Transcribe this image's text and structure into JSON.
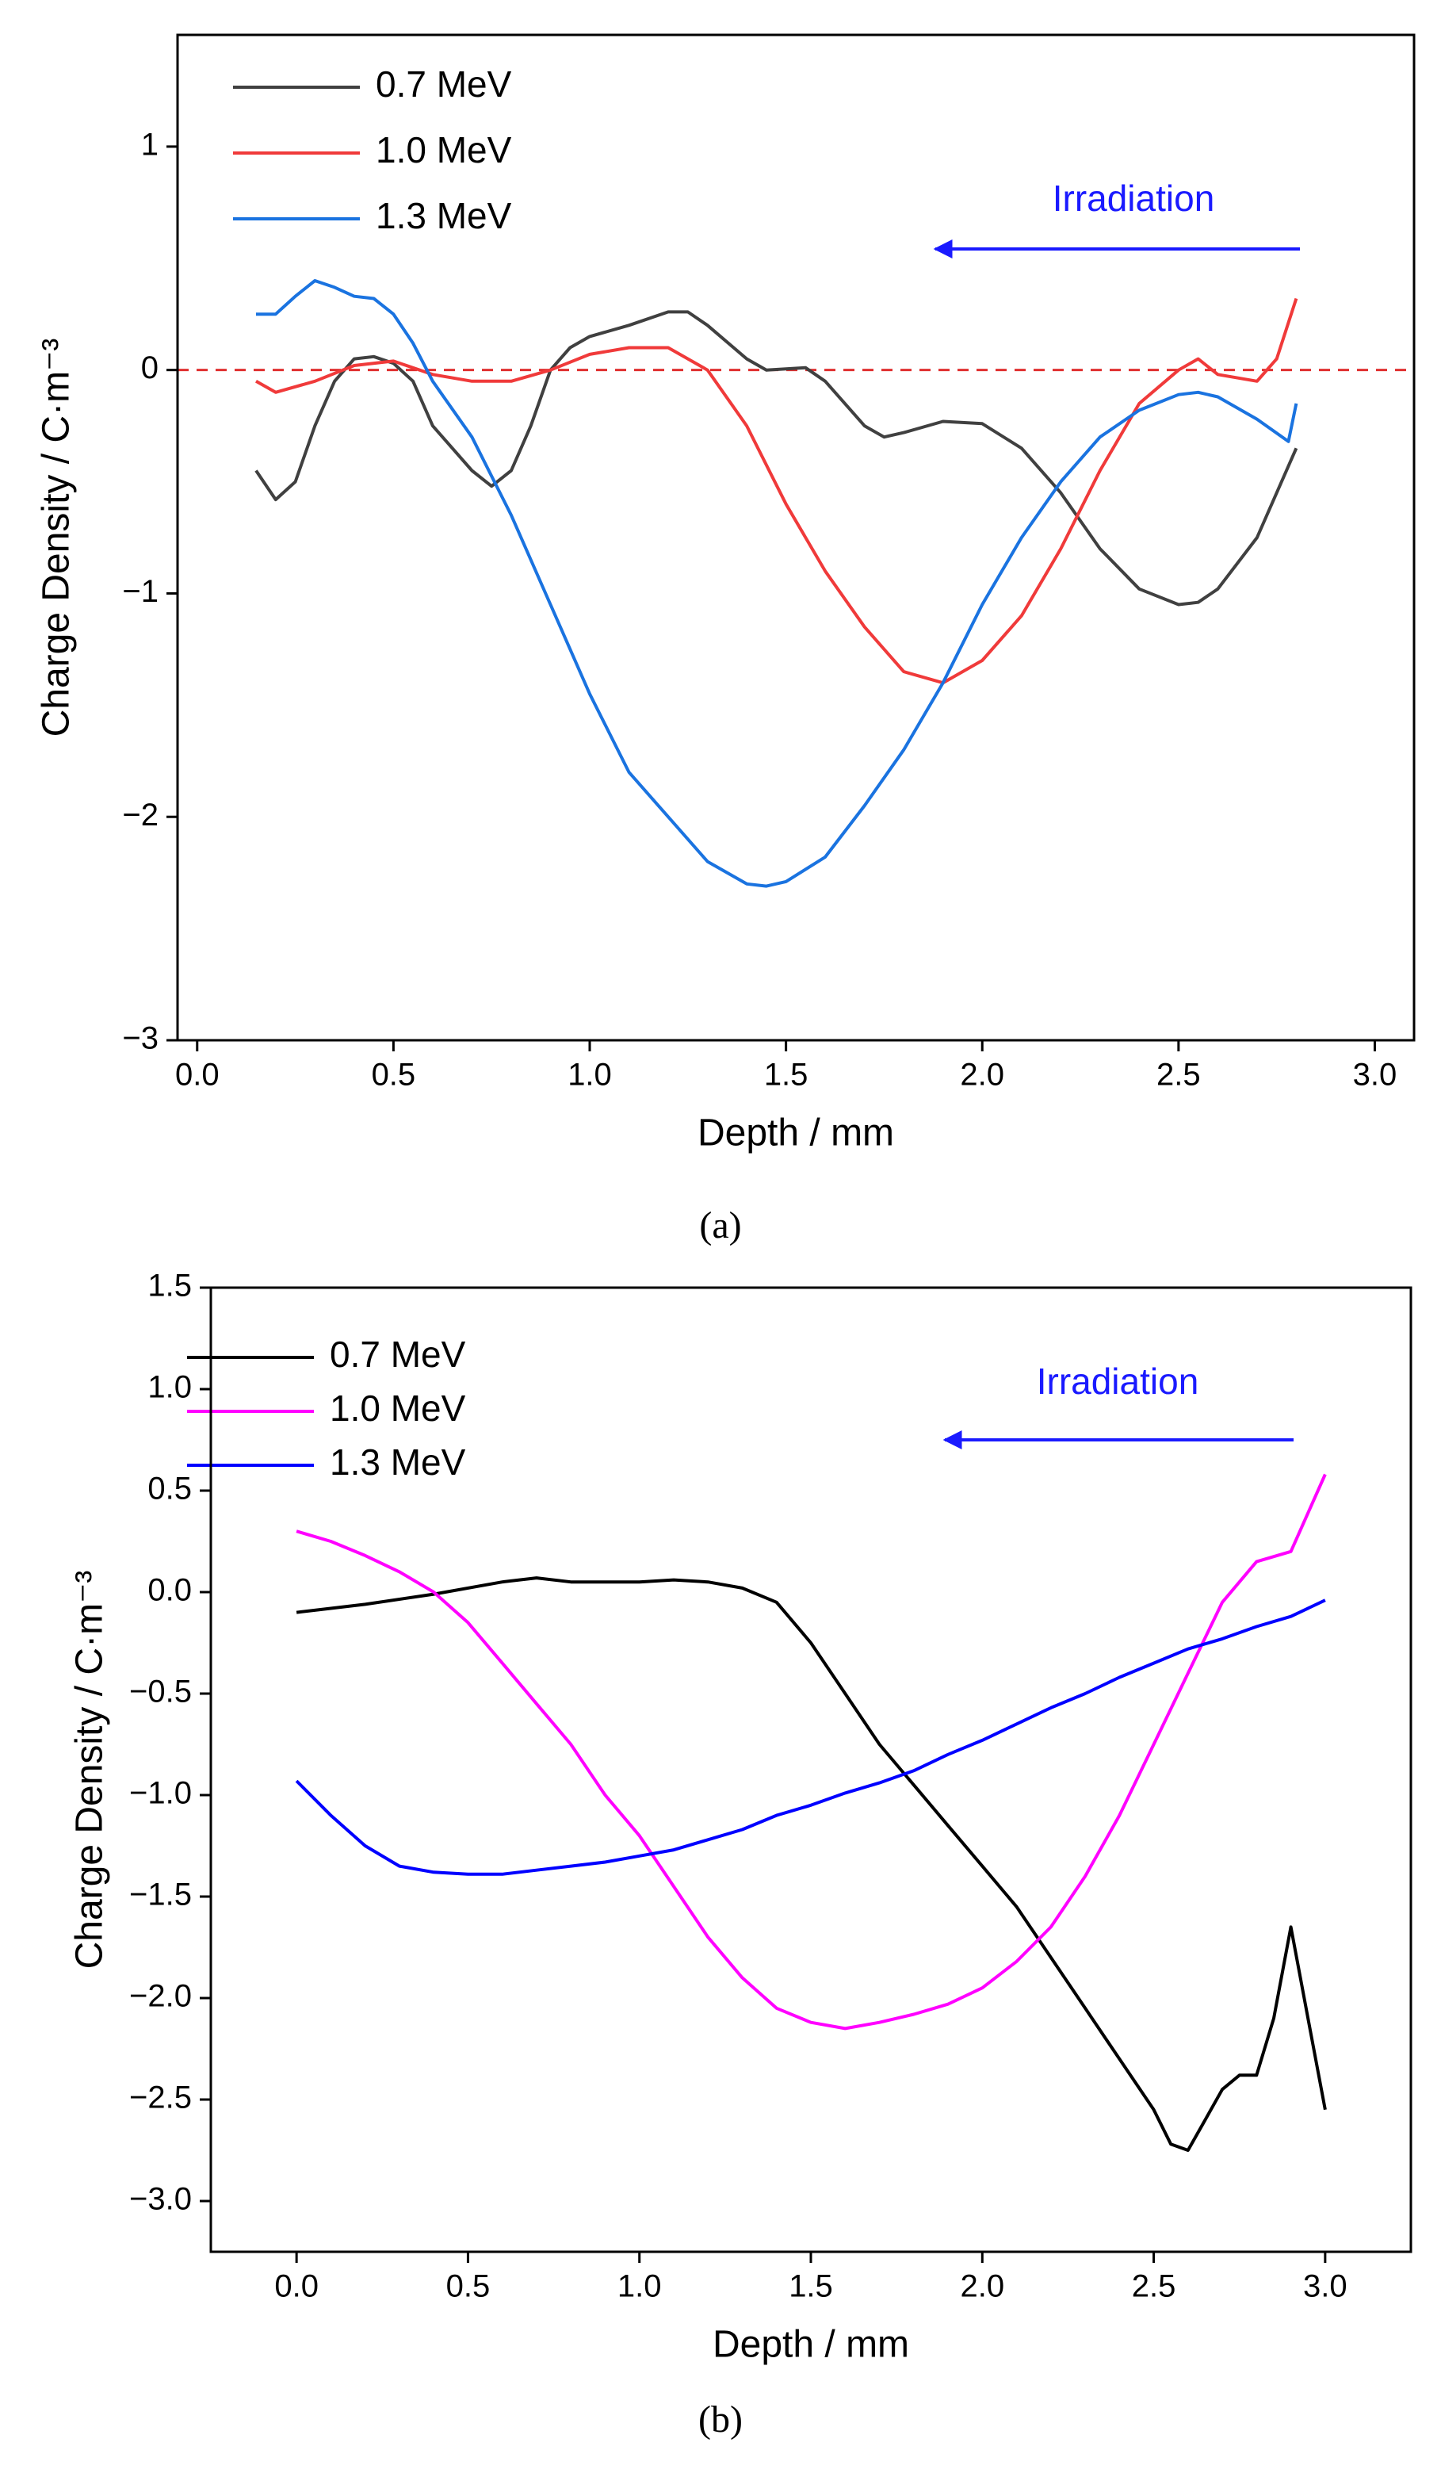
{
  "chart_data": [
    {
      "type": "line",
      "caption": "(a)",
      "xlabel": "Depth / mm",
      "ylabel": "Charge Density / C·m⁻³",
      "annotation": "Irradiation",
      "annotation_color": "#1a1aff",
      "xlim": [
        -0.05,
        3.1
      ],
      "ylim": [
        -3,
        1.5
      ],
      "xticks": [
        {
          "value": 0,
          "label": "0.0"
        },
        0.5,
        {
          "value": 1,
          "label": "1.0"
        },
        1.5,
        {
          "value": 2,
          "label": "2.0"
        },
        2.5,
        {
          "value": 3,
          "label": "3.0"
        }
      ],
      "yticks": [
        {
          "value": -3,
          "label": "−3"
        },
        {
          "value": -2,
          "label": "−2"
        },
        {
          "value": -1,
          "label": "−1"
        },
        0,
        1
      ],
      "reference_line": {
        "value": 0,
        "color": "#e03030",
        "style": "dashed"
      },
      "series": [
        {
          "name": "0.7 MeV",
          "color": "#404040",
          "x": [
            0.15,
            0.2,
            0.25,
            0.3,
            0.35,
            0.4,
            0.45,
            0.5,
            0.55,
            0.6,
            0.65,
            0.7,
            0.75,
            0.8,
            0.85,
            0.9,
            0.95,
            1.0,
            1.1,
            1.2,
            1.25,
            1.3,
            1.4,
            1.45,
            1.55,
            1.6,
            1.7,
            1.75,
            1.8,
            1.9,
            2.0,
            2.1,
            2.2,
            2.3,
            2.4,
            2.5,
            2.55,
            2.6,
            2.7,
            2.8
          ],
          "values": [
            -0.45,
            -0.58,
            -0.5,
            -0.25,
            -0.05,
            0.05,
            0.06,
            0.03,
            -0.05,
            -0.25,
            -0.35,
            -0.45,
            -0.52,
            -0.45,
            -0.25,
            0.0,
            0.1,
            0.15,
            0.2,
            0.26,
            0.26,
            0.2,
            0.05,
            0.0,
            0.01,
            -0.05,
            -0.25,
            -0.3,
            -0.28,
            -0.23,
            -0.24,
            -0.35,
            -0.55,
            -0.8,
            -0.98,
            -1.05,
            -1.04,
            -0.98,
            -0.75,
            -0.35
          ]
        },
        {
          "name": "1.0 MeV",
          "color": "#f03a3a",
          "x": [
            0.15,
            0.2,
            0.3,
            0.4,
            0.5,
            0.6,
            0.7,
            0.8,
            0.9,
            1.0,
            1.1,
            1.2,
            1.3,
            1.4,
            1.5,
            1.6,
            1.7,
            1.8,
            1.9,
            2.0,
            2.1,
            2.2,
            2.3,
            2.4,
            2.5,
            2.55,
            2.6,
            2.7,
            2.75,
            2.8
          ],
          "values": [
            -0.05,
            -0.1,
            -0.05,
            0.02,
            0.04,
            -0.02,
            -0.05,
            -0.05,
            0.0,
            0.07,
            0.1,
            0.1,
            0.0,
            -0.25,
            -0.6,
            -0.9,
            -1.15,
            -1.35,
            -1.4,
            -1.3,
            -1.1,
            -0.8,
            -0.45,
            -0.15,
            0.0,
            0.05,
            -0.02,
            -0.05,
            0.05,
            0.32
          ]
        },
        {
          "name": "1.3 MeV",
          "color": "#1a73e0",
          "x": [
            0.15,
            0.2,
            0.25,
            0.3,
            0.35,
            0.4,
            0.45,
            0.5,
            0.55,
            0.6,
            0.7,
            0.8,
            0.9,
            1.0,
            1.1,
            1.2,
            1.3,
            1.4,
            1.45,
            1.5,
            1.6,
            1.7,
            1.8,
            1.9,
            2.0,
            2.1,
            2.2,
            2.3,
            2.4,
            2.5,
            2.55,
            2.6,
            2.7,
            2.78,
            2.8
          ],
          "values": [
            0.25,
            0.25,
            0.33,
            0.4,
            0.37,
            0.33,
            0.32,
            0.25,
            0.12,
            -0.05,
            -0.3,
            -0.65,
            -1.05,
            -1.45,
            -1.8,
            -2.0,
            -2.2,
            -2.3,
            -2.31,
            -2.29,
            -2.18,
            -1.95,
            -1.7,
            -1.4,
            -1.05,
            -0.75,
            -0.5,
            -0.3,
            -0.18,
            -0.11,
            -0.1,
            -0.12,
            -0.22,
            -0.32,
            -0.15
          ]
        }
      ]
    },
    {
      "type": "line",
      "caption": "(b)",
      "xlabel": "Depth / mm",
      "ylabel": "Charge Density / C·m⁻³",
      "annotation": "Irradiation",
      "annotation_color": "#1a1aff",
      "xlim": [
        -0.25,
        3.25
      ],
      "ylim": [
        -3.25,
        1.5
      ],
      "xticks": [
        {
          "value": 0,
          "label": "0.0"
        },
        0.5,
        {
          "value": 1,
          "label": "1.0"
        },
        1.5,
        {
          "value": 2,
          "label": "2.0"
        },
        2.5,
        {
          "value": 3,
          "label": "3.0"
        }
      ],
      "yticks": [
        {
          "value": -3,
          "label": "−3.0"
        },
        {
          "value": -2.5,
          "label": "−2.5"
        },
        {
          "value": -2,
          "label": "−2.0"
        },
        {
          "value": -1.5,
          "label": "−1.5"
        },
        {
          "value": -1,
          "label": "−1.0"
        },
        {
          "value": -0.5,
          "label": "−0.5"
        },
        {
          "value": 0,
          "label": "0.0"
        },
        0.5,
        {
          "value": 1,
          "label": "1.0"
        },
        1.5
      ],
      "series": [
        {
          "name": "0.7 MeV",
          "color": "#000000",
          "x": [
            0,
            0.2,
            0.4,
            0.6,
            0.7,
            0.8,
            1.0,
            1.1,
            1.2,
            1.3,
            1.4,
            1.5,
            1.6,
            1.7,
            1.8,
            1.9,
            2.0,
            2.1,
            2.2,
            2.3,
            2.4,
            2.5,
            2.55,
            2.6,
            2.65,
            2.7,
            2.75,
            2.8,
            2.85,
            2.9,
            2.95,
            3.0
          ],
          "values": [
            -0.1,
            -0.06,
            -0.01,
            0.05,
            0.07,
            0.05,
            0.05,
            0.06,
            0.05,
            0.02,
            -0.05,
            -0.25,
            -0.5,
            -0.75,
            -0.95,
            -1.15,
            -1.35,
            -1.55,
            -1.8,
            -2.05,
            -2.3,
            -2.55,
            -2.72,
            -2.75,
            -2.6,
            -2.45,
            -2.38,
            -2.38,
            -2.1,
            -1.65,
            -2.1,
            -2.55
          ]
        },
        {
          "name": "1.0 MeV",
          "color": "#ff00ff",
          "x": [
            0,
            0.1,
            0.2,
            0.3,
            0.4,
            0.5,
            0.6,
            0.7,
            0.8,
            0.9,
            1.0,
            1.1,
            1.2,
            1.3,
            1.4,
            1.5,
            1.6,
            1.7,
            1.8,
            1.9,
            2.0,
            2.1,
            2.2,
            2.3,
            2.4,
            2.5,
            2.6,
            2.7,
            2.8,
            2.9,
            3.0
          ],
          "values": [
            0.3,
            0.25,
            0.18,
            0.1,
            0.0,
            -0.15,
            -0.35,
            -0.55,
            -0.75,
            -1.0,
            -1.2,
            -1.45,
            -1.7,
            -1.9,
            -2.05,
            -2.12,
            -2.15,
            -2.12,
            -2.08,
            -2.03,
            -1.95,
            -1.82,
            -1.65,
            -1.4,
            -1.1,
            -0.75,
            -0.4,
            -0.05,
            0.15,
            0.2,
            0.58
          ]
        },
        {
          "name": "1.3 MeV",
          "color": "#0000ff",
          "x": [
            0,
            0.1,
            0.2,
            0.3,
            0.4,
            0.5,
            0.6,
            0.7,
            0.8,
            0.9,
            1.0,
            1.1,
            1.2,
            1.3,
            1.4,
            1.5,
            1.6,
            1.7,
            1.8,
            1.9,
            2.0,
            2.1,
            2.2,
            2.3,
            2.4,
            2.5,
            2.6,
            2.7,
            2.8,
            2.9,
            3.0
          ],
          "values": [
            -0.93,
            -1.1,
            -1.25,
            -1.35,
            -1.38,
            -1.39,
            -1.39,
            -1.37,
            -1.35,
            -1.33,
            -1.3,
            -1.27,
            -1.22,
            -1.17,
            -1.1,
            -1.05,
            -0.99,
            -0.94,
            -0.88,
            -0.8,
            -0.73,
            -0.65,
            -0.57,
            -0.5,
            -0.42,
            -0.35,
            -0.28,
            -0.23,
            -0.17,
            -0.12,
            -0.04
          ]
        }
      ]
    }
  ]
}
